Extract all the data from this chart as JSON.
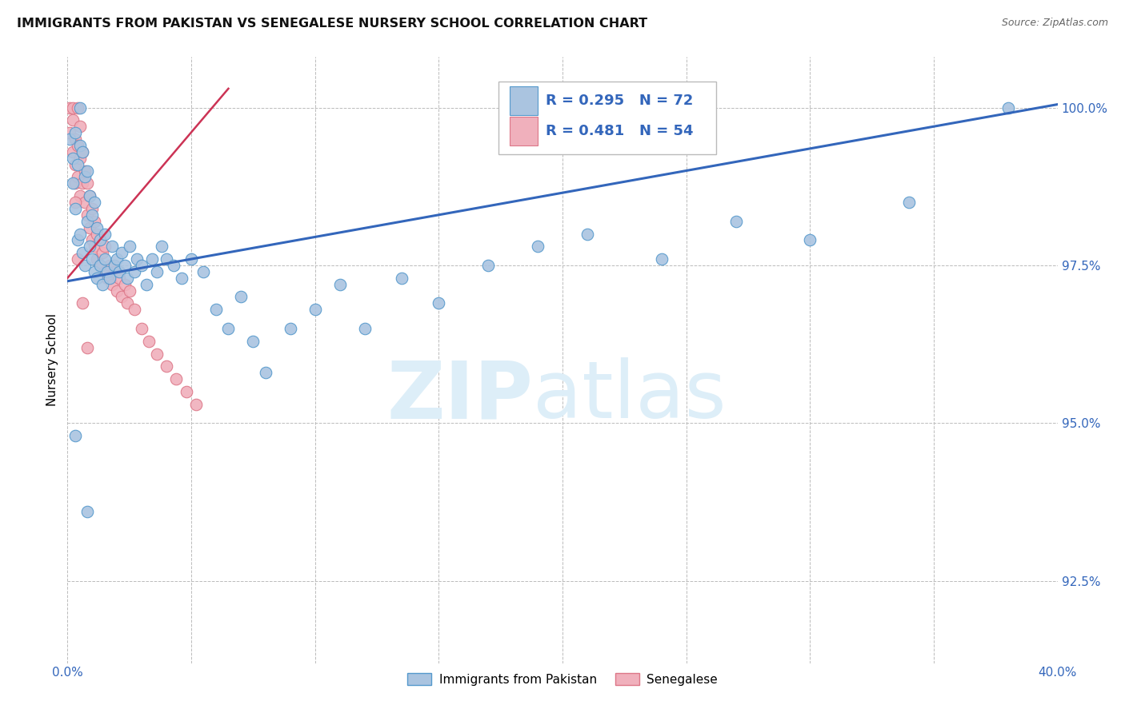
{
  "title": "IMMIGRANTS FROM PAKISTAN VS SENEGALESE NURSERY SCHOOL CORRELATION CHART",
  "source": "Source: ZipAtlas.com",
  "ylabel": "Nursery School",
  "yticks": [
    92.5,
    95.0,
    97.5,
    100.0
  ],
  "ytick_labels": [
    "92.5%",
    "95.0%",
    "97.5%",
    "100.0%"
  ],
  "xmin": 0.0,
  "xmax": 0.4,
  "ymin": 91.2,
  "ymax": 100.8,
  "blue_R": 0.295,
  "blue_N": 72,
  "pink_R": 0.481,
  "pink_N": 54,
  "legend_label_blue": "Immigrants from Pakistan",
  "legend_label_pink": "Senegalese",
  "marker_color_blue": "#aac4e0",
  "marker_edge_blue": "#5599cc",
  "marker_color_pink": "#f0b0bc",
  "marker_edge_pink": "#dd7788",
  "line_color_blue": "#3366bb",
  "line_color_pink": "#cc3355",
  "background_color": "#ffffff",
  "watermark_zip": "ZIP",
  "watermark_atlas": "atlas",
  "watermark_color": "#ddeef8",
  "grid_color": "#bbbbbb",
  "title_fontsize": 11.5,
  "blue_line_x0": 0.0,
  "blue_line_y0": 97.25,
  "blue_line_x1": 0.4,
  "blue_line_y1": 100.05,
  "pink_line_x0": 0.0,
  "pink_line_y0": 97.3,
  "pink_line_x1": 0.065,
  "pink_line_y1": 100.3,
  "blue_scatter_x": [
    0.001,
    0.002,
    0.002,
    0.003,
    0.003,
    0.004,
    0.004,
    0.005,
    0.005,
    0.005,
    0.006,
    0.006,
    0.007,
    0.007,
    0.008,
    0.008,
    0.009,
    0.009,
    0.01,
    0.01,
    0.011,
    0.011,
    0.012,
    0.012,
    0.013,
    0.013,
    0.014,
    0.015,
    0.015,
    0.016,
    0.017,
    0.018,
    0.019,
    0.02,
    0.021,
    0.022,
    0.023,
    0.024,
    0.025,
    0.027,
    0.028,
    0.03,
    0.032,
    0.034,
    0.036,
    0.038,
    0.04,
    0.043,
    0.046,
    0.05,
    0.055,
    0.06,
    0.065,
    0.07,
    0.075,
    0.08,
    0.09,
    0.1,
    0.11,
    0.12,
    0.135,
    0.15,
    0.17,
    0.19,
    0.21,
    0.24,
    0.27,
    0.3,
    0.34,
    0.38,
    0.003,
    0.008
  ],
  "blue_scatter_y": [
    99.5,
    99.2,
    98.8,
    99.6,
    98.4,
    99.1,
    97.9,
    100.0,
    99.4,
    98.0,
    99.3,
    97.7,
    98.9,
    97.5,
    99.0,
    98.2,
    97.8,
    98.6,
    97.6,
    98.3,
    97.4,
    98.5,
    97.3,
    98.1,
    97.5,
    97.9,
    97.2,
    98.0,
    97.6,
    97.4,
    97.3,
    97.8,
    97.5,
    97.6,
    97.4,
    97.7,
    97.5,
    97.3,
    97.8,
    97.4,
    97.6,
    97.5,
    97.2,
    97.6,
    97.4,
    97.8,
    97.6,
    97.5,
    97.3,
    97.6,
    97.4,
    96.8,
    96.5,
    97.0,
    96.3,
    95.8,
    96.5,
    96.8,
    97.2,
    96.5,
    97.3,
    96.9,
    97.5,
    97.8,
    98.0,
    97.6,
    98.2,
    97.9,
    98.5,
    100.0,
    94.8,
    93.6
  ],
  "pink_scatter_x": [
    0.001,
    0.001,
    0.002,
    0.002,
    0.002,
    0.003,
    0.003,
    0.003,
    0.004,
    0.004,
    0.004,
    0.005,
    0.005,
    0.005,
    0.006,
    0.006,
    0.007,
    0.007,
    0.008,
    0.008,
    0.009,
    0.009,
    0.01,
    0.01,
    0.011,
    0.011,
    0.012,
    0.012,
    0.013,
    0.014,
    0.015,
    0.015,
    0.016,
    0.017,
    0.018,
    0.019,
    0.02,
    0.021,
    0.022,
    0.023,
    0.024,
    0.025,
    0.027,
    0.03,
    0.033,
    0.036,
    0.04,
    0.044,
    0.048,
    0.052,
    0.003,
    0.004,
    0.006,
    0.008
  ],
  "pink_scatter_y": [
    100.0,
    99.6,
    99.8,
    99.3,
    100.0,
    99.5,
    99.1,
    98.8,
    99.4,
    98.9,
    100.0,
    99.2,
    98.6,
    99.7,
    98.8,
    99.3,
    98.5,
    99.0,
    98.3,
    98.8,
    98.1,
    98.6,
    97.9,
    98.4,
    97.8,
    98.2,
    97.6,
    98.0,
    97.5,
    97.7,
    97.4,
    97.8,
    97.3,
    97.5,
    97.2,
    97.4,
    97.1,
    97.3,
    97.0,
    97.2,
    96.9,
    97.1,
    96.8,
    96.5,
    96.3,
    96.1,
    95.9,
    95.7,
    95.5,
    95.3,
    98.5,
    97.6,
    96.9,
    96.2
  ]
}
